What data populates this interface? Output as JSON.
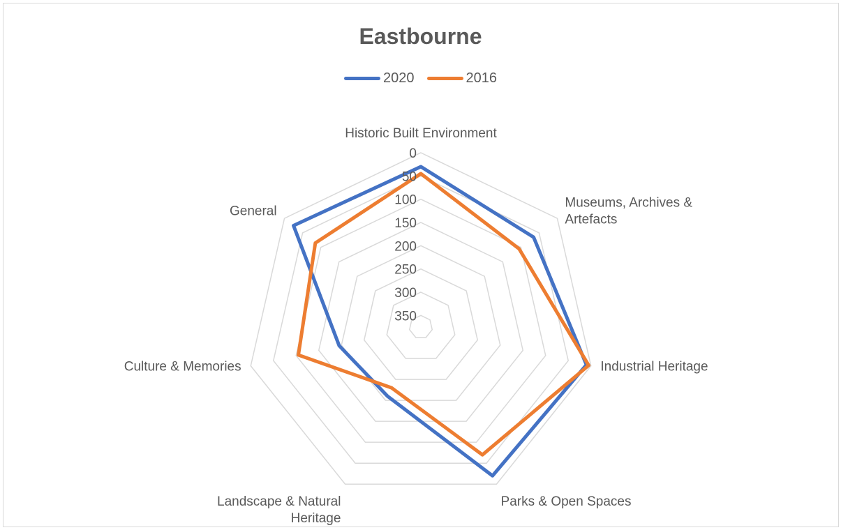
{
  "chart_data": {
    "type": "radar",
    "title": "Eastbourne",
    "categories": [
      "Historic Built Environment",
      "Museums, Archives & Artefacts",
      "Industrial Heritage",
      "Parks & Open Spaces",
      "Landscape & Natural Heritage",
      "Culture & Memories",
      "General"
    ],
    "category_lines": [
      [
        "Historic Built Environment"
      ],
      [
        "Museums, Archives &",
        "Artefacts"
      ],
      [
        "Industrial Heritage"
      ],
      [
        "Parks & Open Spaces"
      ],
      [
        "Landscape & Natural",
        "Heritage"
      ],
      [
        "Culture & Memories"
      ],
      [
        "General"
      ]
    ],
    "ticks": [
      0,
      50,
      100,
      150,
      200,
      250,
      300,
      350
    ],
    "axis_reversed": true,
    "axis_min": 0,
    "axis_max": 375,
    "series": [
      {
        "name": "2020",
        "color": "#4472c4",
        "values": [
          30,
          65,
          10,
          20,
          210,
          195,
          25
        ]
      },
      {
        "name": "2016",
        "color": "#ed7d31",
        "values": [
          45,
          105,
          5,
          70,
          230,
          105,
          85
        ]
      }
    ],
    "legend_position": "top",
    "grid": true
  }
}
